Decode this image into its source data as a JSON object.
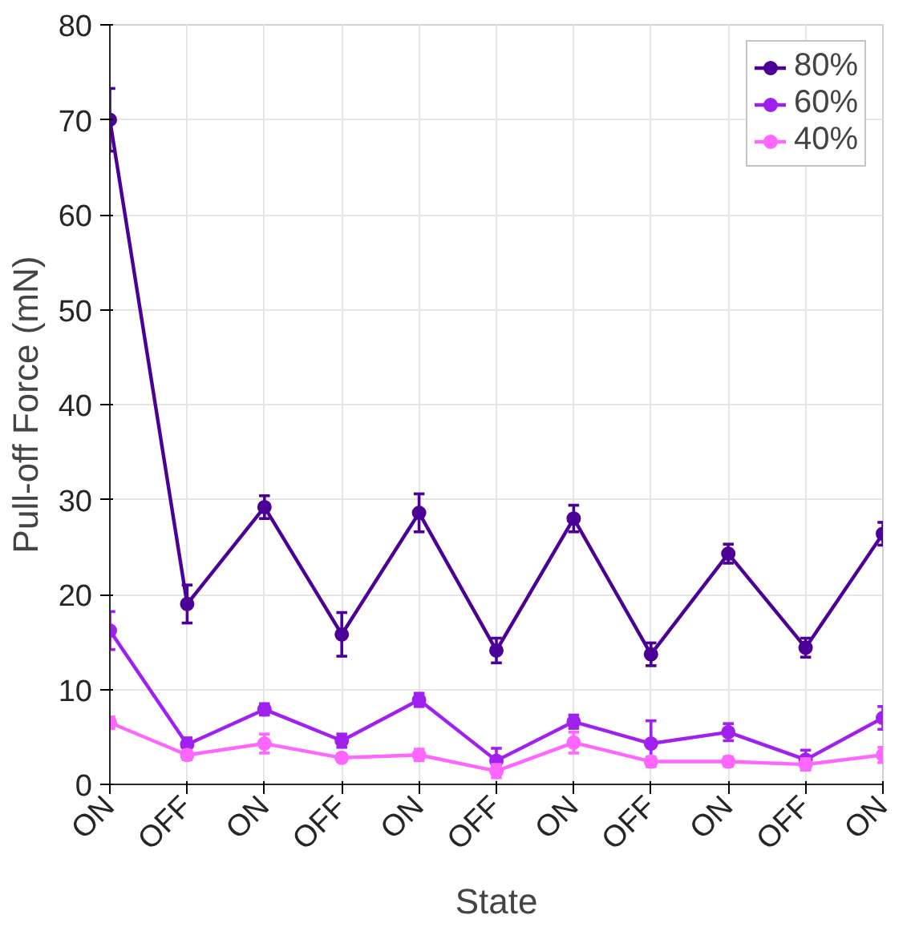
{
  "chart_data": {
    "type": "line",
    "xlabel": "State",
    "ylabel": "Pull-off Force (mN)",
    "categories": [
      "ON",
      "OFF",
      "ON",
      "OFF",
      "ON",
      "OFF",
      "ON",
      "OFF",
      "ON",
      "OFF",
      "ON"
    ],
    "ylim": [
      0,
      80
    ],
    "yticks": [
      0,
      10,
      20,
      30,
      40,
      50,
      60,
      70,
      80
    ],
    "grid": true,
    "legend": "top right",
    "marker": "circle",
    "line_style": "solid",
    "series": [
      {
        "name": "80%",
        "color": "#4b0096",
        "values": [
          70,
          19,
          29.2,
          15.8,
          28.6,
          14.1,
          28,
          13.7,
          24.3,
          14.4,
          26.4
        ],
        "errors": [
          3.3,
          2,
          1.2,
          2.3,
          2,
          1.3,
          1.4,
          1.2,
          1,
          1,
          1.2
        ]
      },
      {
        "name": "60%",
        "color": "#a020f0",
        "values": [
          16.2,
          4.2,
          7.9,
          4.6,
          8.9,
          2.5,
          6.6,
          4.3,
          5.5,
          2.6,
          7
        ],
        "errors": [
          2,
          0.7,
          0.6,
          0.7,
          0.7,
          1.3,
          0.7,
          2.4,
          0.9,
          1,
          1.2
        ]
      },
      {
        "name": "40%",
        "color": "#ff66ff",
        "values": [
          6.5,
          3.1,
          4.3,
          2.8,
          3.1,
          1.4,
          4.4,
          2.4,
          2.4,
          2.1,
          3.1
        ],
        "errors": [
          0.6,
          0.5,
          1,
          0.4,
          0.6,
          0.7,
          1.1,
          0.5,
          0.5,
          0.6,
          0.8
        ]
      }
    ]
  }
}
